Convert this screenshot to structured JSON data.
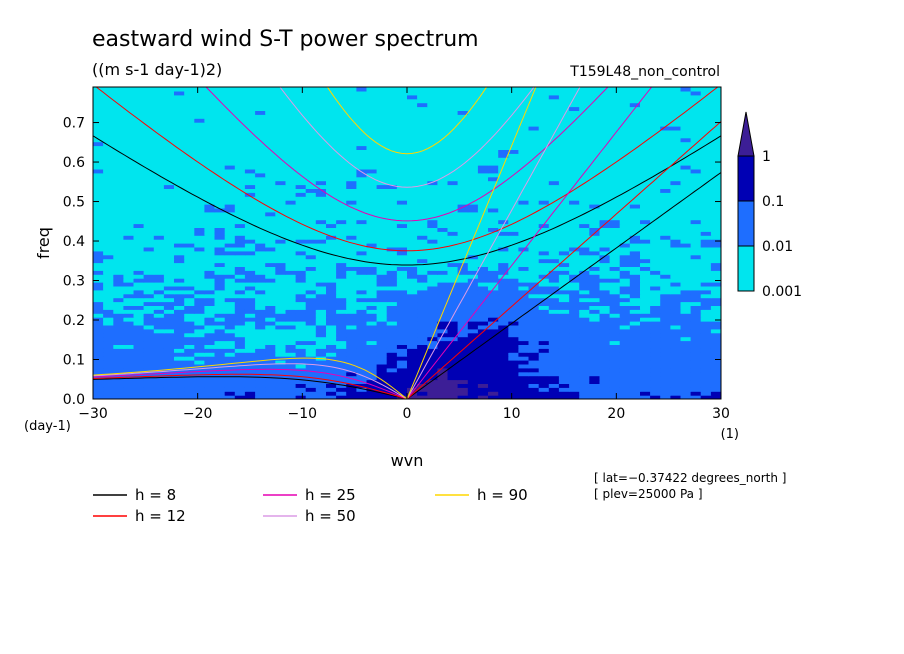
{
  "chart_data": {
    "type": "heatmap",
    "title": "eastward wind S-T power spectrum",
    "subtitle": "((m s-1 day-1)2)",
    "run_label": "T159L48_non_control",
    "xlabel": "wvn",
    "ylabel": "freq",
    "x_unit": "(1)",
    "y_unit": "(day-1)",
    "xlim": [
      -30,
      30
    ],
    "ylim": [
      0,
      0.79
    ],
    "x_ticks": [
      -30,
      -20,
      -10,
      0,
      10,
      20,
      30
    ],
    "x_tick_labels": [
      "−30",
      "−20",
      "−10",
      "0",
      "10",
      "20",
      "30"
    ],
    "y_ticks": [
      0.0,
      0.1,
      0.2,
      0.3,
      0.4,
      0.5,
      0.6,
      0.7
    ],
    "y_tick_labels": [
      "0.0",
      "0.1",
      "0.2",
      "0.3",
      "0.4",
      "0.5",
      "0.6",
      "0.7"
    ],
    "colorbar": {
      "levels": [
        0.001,
        0.01,
        0.1,
        1
      ],
      "labels": [
        "0.001",
        "0.01",
        "0.1",
        "1"
      ],
      "colors": [
        "#00e5ee",
        "#1e6eff",
        "#0000b4",
        "#3c1e96"
      ]
    },
    "dispersion_curves": [
      {
        "name": "h =  8",
        "h": 8,
        "color": "#000000"
      },
      {
        "name": "h = 12",
        "h": 12,
        "color": "#ff0000"
      },
      {
        "name": "h = 25",
        "h": 25,
        "color": "#e600b4"
      },
      {
        "name": "h = 50",
        "h": 50,
        "color": "#dc9be6"
      },
      {
        "name": "h = 90",
        "h": 90,
        "color": "#ffd700"
      }
    ],
    "legend_placement": "bottom-left",
    "info_lines": [
      "[ lat=−0.37422 degrees_north ]",
      "[ plev=25000 Pa ]"
    ]
  }
}
